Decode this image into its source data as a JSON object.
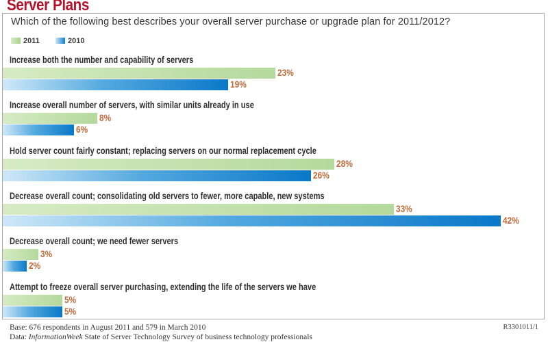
{
  "chart_data": {
    "type": "bar",
    "orientation": "horizontal",
    "title": "Server Plans",
    "subtitle": "Which of the following best describes your overall server purchase or upgrade plan for 2011/2012?",
    "xlabel": "",
    "ylabel": "",
    "xlim": [
      0,
      45
    ],
    "grid": false,
    "legend_position": "top-left",
    "value_suffix": "%",
    "categories": [
      "Increase both the number and capability of servers",
      "Increase overall number of servers, with similar units already in use",
      "Hold server count fairly constant; replacing servers on our normal replacement cycle",
      "Decrease overall count; consolidating old servers to fewer, more capable, new systems",
      "Decrease overall count; we need fewer servers",
      "Attempt to freeze overall server purchasing, extending the life of the servers we have"
    ],
    "series": [
      {
        "name": "2011",
        "color": "#b4d99c",
        "values": [
          23,
          8,
          28,
          33,
          3,
          5
        ]
      },
      {
        "name": "2010",
        "color": "#0a78c8",
        "values": [
          19,
          6,
          26,
          42,
          2,
          5
        ]
      }
    ]
  },
  "footer": {
    "base": "Base: 676 respondents in August 2011 and 579 in March 2010",
    "source_prefix": "Data: ",
    "source_italic": "InformationWeek",
    "source_rest": " State of Server Technology Survey of business technology professionals",
    "code": "R3301011/1"
  },
  "colors": {
    "title": "#b3122a",
    "value_label": "#c06a3a"
  }
}
